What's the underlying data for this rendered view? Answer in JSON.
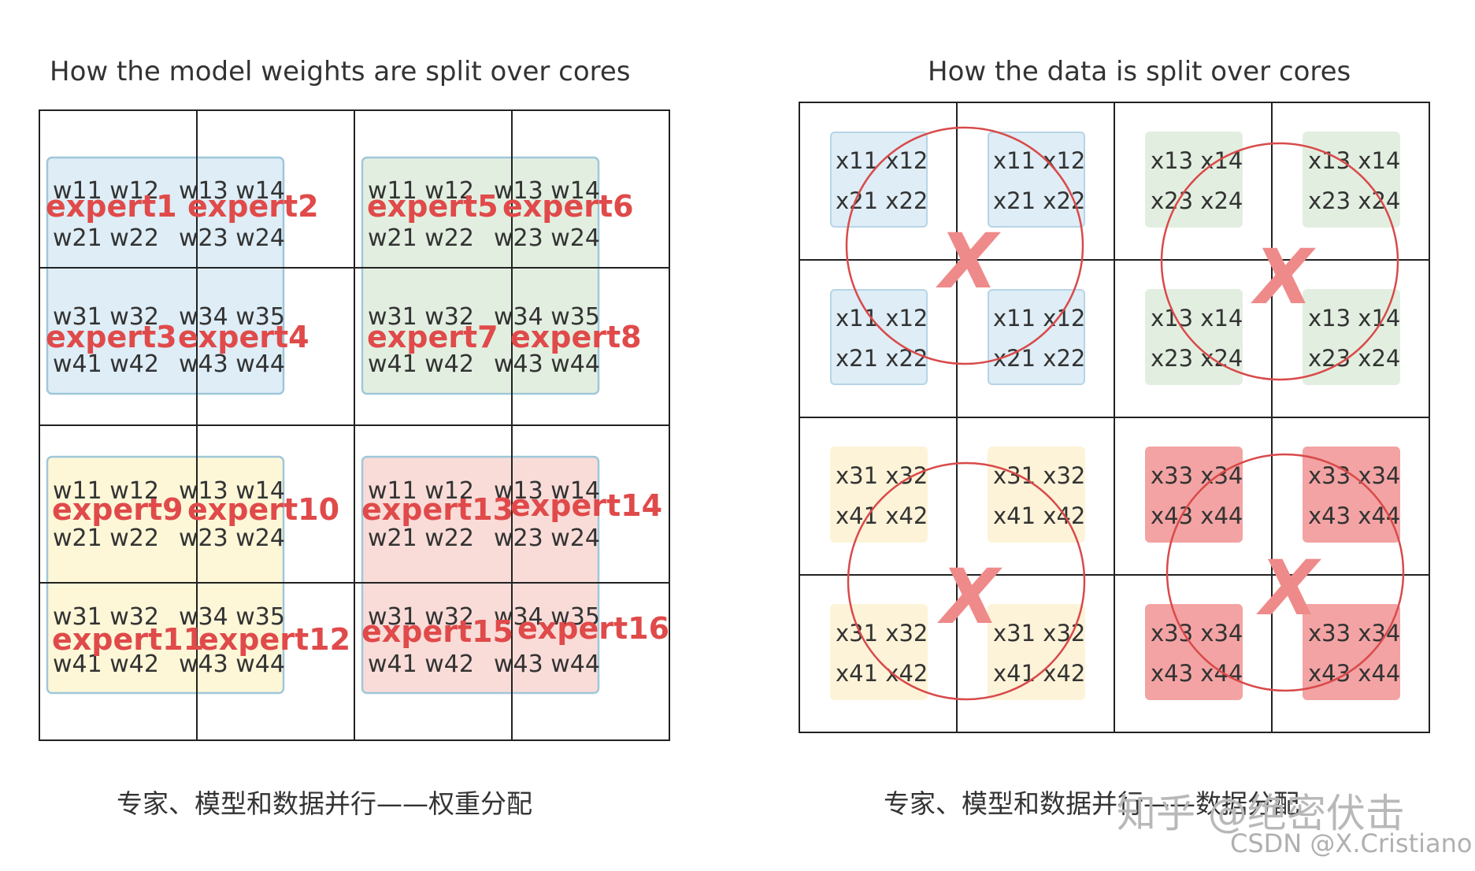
{
  "left": {
    "title": "How the model weights are split over cores",
    "caption": "专家、模型和数据并行——权重分配",
    "weight_lines": [
      "w11 w12",
      "w13 w14",
      "w21 w22",
      "w23 w24",
      "w31 w32",
      "w34 w35",
      "w41 w42",
      "w43 w44"
    ],
    "experts": [
      "expert1",
      "expert2",
      "expert3",
      "expert4",
      "expert5",
      "expert6",
      "expert7",
      "expert8",
      "expert9",
      "expert10",
      "expert11",
      "expert12",
      "expert13",
      "expert14",
      "expert15",
      "expert16"
    ],
    "block_colors": [
      "#deedf6",
      "#e2efe0",
      "#fdf7d8",
      "#f9dcd8"
    ],
    "block_borders": [
      "#9fc7da",
      "#9fc7da",
      "#9fc7da",
      "#9fc7da"
    ]
  },
  "right": {
    "title": "How the data is split over cores",
    "caption": "专家、模型和数据并行——数据分配",
    "data_lines": [
      [
        "x11 x12",
        "x21 x22"
      ],
      [
        "x13 x14",
        "x23 x24"
      ],
      [
        "x31 x32",
        "x41 x42"
      ],
      [
        "x33 x34",
        "x43 x44"
      ]
    ],
    "cross_mark": "X",
    "block_colors": [
      "#deedf6",
      "#e2efe0",
      "#fdf3d8",
      "#f3a3a3"
    ],
    "block_borders": [
      "#b7d5e6",
      "#e2efe0",
      "#fdf3d8",
      "#f3a3a3"
    ],
    "circle_color": "#d94a4a"
  },
  "watermark": {
    "line1": "知乎 @绝密伏击",
    "line2": "CSDN @X.Cristiano"
  }
}
